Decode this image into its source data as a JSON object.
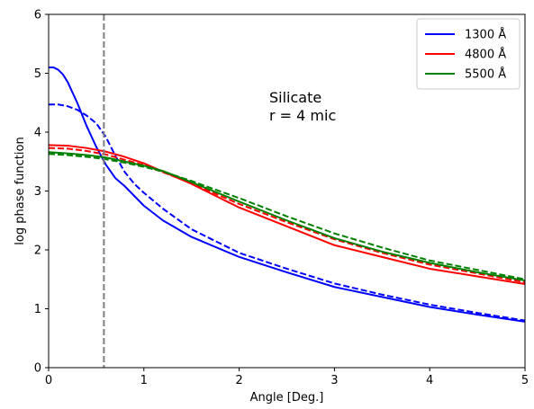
{
  "chart_data": {
    "type": "line",
    "xlabel": "Angle [Deg.]",
    "ylabel": "log phase function",
    "xlim": [
      0,
      5
    ],
    "ylim": [
      0,
      6
    ],
    "x_ticks": [
      "0",
      "1",
      "2",
      "3",
      "4",
      "5"
    ],
    "y_ticks": [
      "0",
      "1",
      "2",
      "3",
      "4",
      "5",
      "6"
    ],
    "grid": false,
    "legend_position": "top-right",
    "annotation": [
      "Silicate",
      "r = 4 mic"
    ],
    "vline": {
      "x": 0.58,
      "color": "#808080",
      "style": "dashed"
    },
    "series": [
      {
        "name": "1300 Å",
        "color": "#0000ff",
        "style": "solid",
        "points": [
          [
            0,
            5.1
          ],
          [
            0.05,
            5.1
          ],
          [
            0.1,
            5.06
          ],
          [
            0.15,
            4.98
          ],
          [
            0.2,
            4.85
          ],
          [
            0.3,
            4.5
          ],
          [
            0.4,
            4.1
          ],
          [
            0.5,
            3.75
          ],
          [
            0.6,
            3.45
          ],
          [
            0.7,
            3.22
          ],
          [
            0.8,
            3.08
          ],
          [
            1.0,
            2.75
          ],
          [
            1.2,
            2.5
          ],
          [
            1.5,
            2.22
          ],
          [
            2.0,
            1.88
          ],
          [
            2.5,
            1.62
          ],
          [
            3.0,
            1.37
          ],
          [
            3.5,
            1.2
          ],
          [
            4.0,
            1.03
          ],
          [
            4.5,
            0.9
          ],
          [
            5.0,
            0.78
          ]
        ]
      },
      {
        "name": "1300 Å",
        "color": "#0000ff",
        "style": "dashed",
        "points": [
          [
            0,
            4.47
          ],
          [
            0.1,
            4.47
          ],
          [
            0.2,
            4.44
          ],
          [
            0.3,
            4.38
          ],
          [
            0.4,
            4.28
          ],
          [
            0.5,
            4.15
          ],
          [
            0.6,
            3.92
          ],
          [
            0.7,
            3.6
          ],
          [
            0.8,
            3.32
          ],
          [
            0.9,
            3.12
          ],
          [
            1.0,
            2.97
          ],
          [
            1.2,
            2.7
          ],
          [
            1.5,
            2.35
          ],
          [
            2.0,
            1.95
          ],
          [
            2.5,
            1.68
          ],
          [
            3.0,
            1.43
          ],
          [
            3.5,
            1.24
          ],
          [
            4.0,
            1.07
          ],
          [
            4.5,
            0.93
          ],
          [
            5.0,
            0.8
          ]
        ]
      },
      {
        "name": "4800 Å",
        "color": "#ff0000",
        "style": "solid",
        "points": [
          [
            0,
            3.78
          ],
          [
            0.2,
            3.77
          ],
          [
            0.4,
            3.73
          ],
          [
            0.6,
            3.67
          ],
          [
            0.8,
            3.58
          ],
          [
            1.0,
            3.47
          ],
          [
            1.2,
            3.33
          ],
          [
            1.5,
            3.12
          ],
          [
            2.0,
            2.72
          ],
          [
            2.5,
            2.4
          ],
          [
            3.0,
            2.08
          ],
          [
            3.5,
            1.88
          ],
          [
            4.0,
            1.68
          ],
          [
            4.5,
            1.55
          ],
          [
            5.0,
            1.42
          ]
        ]
      },
      {
        "name": "4800 Å",
        "color": "#ff0000",
        "style": "dashed",
        "points": [
          [
            0,
            3.73
          ],
          [
            0.2,
            3.72
          ],
          [
            0.4,
            3.68
          ],
          [
            0.6,
            3.62
          ],
          [
            0.8,
            3.53
          ],
          [
            1.0,
            3.44
          ],
          [
            1.2,
            3.32
          ],
          [
            1.5,
            3.13
          ],
          [
            2.0,
            2.78
          ],
          [
            2.5,
            2.47
          ],
          [
            3.0,
            2.18
          ],
          [
            3.5,
            1.95
          ],
          [
            4.0,
            1.75
          ],
          [
            4.5,
            1.6
          ],
          [
            5.0,
            1.45
          ]
        ]
      },
      {
        "name": "5500 Å",
        "color": "#008000",
        "style": "solid",
        "points": [
          [
            0,
            3.66
          ],
          [
            0.2,
            3.64
          ],
          [
            0.4,
            3.61
          ],
          [
            0.6,
            3.57
          ],
          [
            0.8,
            3.5
          ],
          [
            1.0,
            3.43
          ],
          [
            1.2,
            3.34
          ],
          [
            1.5,
            3.15
          ],
          [
            2.0,
            2.82
          ],
          [
            2.5,
            2.5
          ],
          [
            3.0,
            2.2
          ],
          [
            3.5,
            1.97
          ],
          [
            4.0,
            1.78
          ],
          [
            4.5,
            1.62
          ],
          [
            5.0,
            1.48
          ]
        ]
      },
      {
        "name": "5500 Å",
        "color": "#008000",
        "style": "dashed",
        "points": [
          [
            0,
            3.63
          ],
          [
            0.2,
            3.61
          ],
          [
            0.4,
            3.58
          ],
          [
            0.6,
            3.54
          ],
          [
            0.8,
            3.48
          ],
          [
            1.0,
            3.41
          ],
          [
            1.2,
            3.33
          ],
          [
            1.5,
            3.17
          ],
          [
            2.0,
            2.88
          ],
          [
            2.5,
            2.57
          ],
          [
            3.0,
            2.28
          ],
          [
            3.5,
            2.04
          ],
          [
            4.0,
            1.82
          ],
          [
            4.5,
            1.66
          ],
          [
            5.0,
            1.5
          ]
        ]
      }
    ],
    "legend": [
      {
        "label": "1300 Å",
        "color": "#0000ff"
      },
      {
        "label": "4800 Å",
        "color": "#ff0000"
      },
      {
        "label": "5500 Å",
        "color": "#008000"
      }
    ]
  }
}
